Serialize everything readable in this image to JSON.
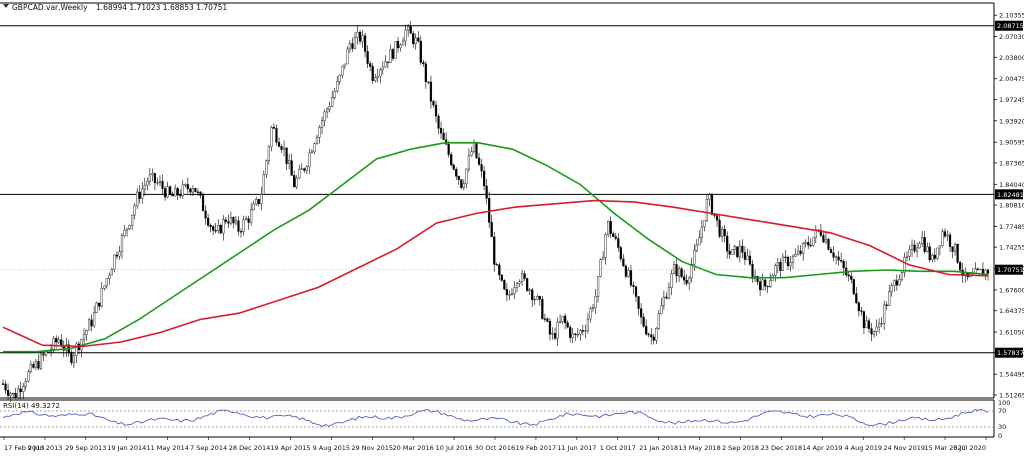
{
  "header": {
    "symbol": "GBPCAD.var,Weekly",
    "ohlc": "1.68994 1.71023 1.68853 1.70751"
  },
  "rsi": {
    "label": "RSI(14) 49.3272",
    "levels": [
      70,
      30
    ],
    "scale_labels": [
      "100",
      "70",
      "30",
      "0"
    ],
    "color": "#3f51b5"
  },
  "chart_data": {
    "type": "candlestick",
    "title": "GBPCAD.var,Weekly",
    "y_ticks": [
      "2.10355",
      "2.07030",
      "2.03800",
      "2.00475",
      "1.97245",
      "1.93920",
      "1.90595",
      "1.87365",
      "1.84040",
      "1.80810",
      "1.77485",
      "1.74255",
      "1.70930",
      "1.67600",
      "1.64375",
      "1.61050",
      "1.57820",
      "1.54495",
      "1.51265"
    ],
    "ylim": [
      1.511,
      2.1085
    ],
    "x_labels": [
      "17 Feb 2013",
      "9 Jun 2013",
      "29 Sep 2013",
      "19 Jan 2014",
      "11 May 2014",
      "7 Sep 2014",
      "28 Dec 2014",
      "19 Apr 2015",
      "9 Aug 2015",
      "29 Nov 2015",
      "20 Mar 2016",
      "10 Jul 2016",
      "30 Oct 2016",
      "19 Feb 2017",
      "11 Jun 2017",
      "1 Oct 2017",
      "21 Jan 2018",
      "13 May 2018",
      "2 Sep 2018",
      "23 Dec 2018",
      "14 Apr 2019",
      "4 Aug 2019",
      "24 Nov 2019",
      "15 Mar 2020",
      "5 Jul 2020"
    ],
    "horizontal_lines": [
      {
        "value": 2.08715,
        "label": "2.08715"
      },
      {
        "value": 1.82481,
        "label": "1.82481"
      },
      {
        "value": 1.57837,
        "label": "1.57837"
      }
    ],
    "current_price": {
      "value": 1.70751,
      "label": "1.70751"
    },
    "price_path": [
      1.53,
      1.51,
      1.54,
      1.56,
      1.58,
      1.6,
      1.57,
      1.6,
      1.63,
      1.68,
      1.73,
      1.77,
      1.82,
      1.85,
      1.84,
      1.82,
      1.83,
      1.84,
      1.8,
      1.76,
      1.79,
      1.77,
      1.79,
      1.82,
      1.93,
      1.9,
      1.84,
      1.87,
      1.92,
      1.96,
      2.0,
      2.06,
      2.07,
      2.01,
      2.03,
      2.05,
      2.08,
      2.06,
      1.99,
      1.92,
      1.88,
      1.84,
      1.9,
      1.84,
      1.71,
      1.66,
      1.7,
      1.68,
      1.65,
      1.6,
      1.63,
      1.6,
      1.62,
      1.67,
      1.78,
      1.74,
      1.69,
      1.63,
      1.6,
      1.66,
      1.71,
      1.69,
      1.74,
      1.82,
      1.77,
      1.73,
      1.74,
      1.7,
      1.68,
      1.71,
      1.72,
      1.73,
      1.75,
      1.77,
      1.74,
      1.71,
      1.68,
      1.62,
      1.61,
      1.66,
      1.7,
      1.73,
      1.76,
      1.72,
      1.77,
      1.74,
      1.69,
      1.7,
      1.707
    ],
    "series": [
      {
        "color": "#1a9a1a",
        "values": [
          1.58,
          1.58,
          1.585,
          1.6,
          1.63,
          1.665,
          1.7,
          1.735,
          1.77,
          1.8,
          1.84,
          1.88,
          1.895,
          1.905,
          1.905,
          1.895,
          1.87,
          1.84,
          1.795,
          1.755,
          1.72,
          1.7,
          1.695,
          1.695,
          1.7,
          1.705,
          1.707,
          1.705,
          1.705,
          1.7
        ]
      },
      {
        "color": "#d8192d",
        "values": [
          1.618,
          1.59,
          1.588,
          1.595,
          1.61,
          1.63,
          1.64,
          1.66,
          1.68,
          1.71,
          1.74,
          1.78,
          1.795,
          1.805,
          1.81,
          1.815,
          1.813,
          1.805,
          1.795,
          1.785,
          1.775,
          1.765,
          1.745,
          1.715,
          1.7,
          1.698
        ]
      }
    ]
  }
}
